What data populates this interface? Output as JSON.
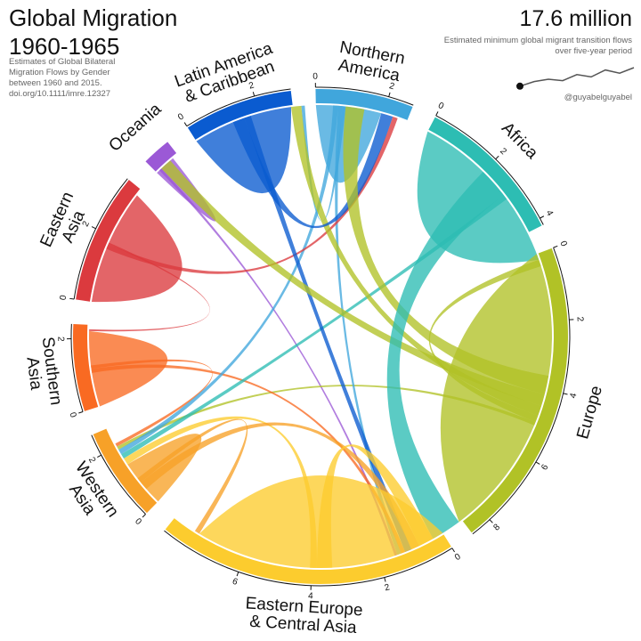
{
  "header": {
    "title_line1": "Global Migration",
    "title_line2": "1960-1965",
    "subtitle": "Estimates of Global Bilateral Migration Flows by Gender between 1960 and 2015. doi.org/10.1111/imre.12327",
    "total": "17.6 million",
    "total_note": "Estimated minimum global migrant transition flows over five-year period",
    "credit": "@guyabelguyabel"
  },
  "colors": {
    "Northern America": "#40a6dc",
    "Africa": "#2dbdb3",
    "Europe": "#b1c226",
    "Eastern Europe & Central Asia": "#fccc2e",
    "Western Asia": "#f7a128",
    "Southern Asia": "#f96a22",
    "Eastern Asia": "#db3a3e",
    "Oceania": "#9b59d6",
    "Latin America & Caribbean": "#0a5bd0"
  },
  "chart_data": {
    "type": "chord",
    "units": "millions of migrants",
    "sparkline": [
      0.6,
      0.7,
      0.75,
      0.72,
      0.85,
      0.8,
      0.95,
      0.88,
      1.0
    ],
    "regions": [
      {
        "name": "Northern America",
        "label_lines": [
          "Northern",
          "America"
        ],
        "total": 2.7,
        "ticks": [
          0,
          2
        ]
      },
      {
        "name": "Africa",
        "label_lines": [
          "Africa"
        ],
        "total": 4.2,
        "ticks": [
          0,
          2,
          4
        ]
      },
      {
        "name": "Europe",
        "label_lines": [
          "Europe"
        ],
        "total": 8.6,
        "ticks": [
          0,
          2,
          4,
          6,
          8
        ]
      },
      {
        "name": "Eastern Europe & Central Asia",
        "label_lines": [
          "Eastern Europe",
          "& Central Asia"
        ],
        "total": 8.3,
        "ticks": [
          0,
          2,
          4,
          6
        ]
      },
      {
        "name": "Western Asia",
        "label_lines": [
          "Western",
          "Asia"
        ],
        "total": 2.6,
        "ticks": [
          0,
          2
        ]
      },
      {
        "name": "Southern Asia",
        "label_lines": [
          "Southern",
          "Asia"
        ],
        "total": 2.4,
        "ticks": [
          0,
          2
        ]
      },
      {
        "name": "Eastern Asia",
        "label_lines": [
          "Eastern",
          "Asia"
        ],
        "total": 3.6,
        "ticks": [
          0,
          2
        ]
      },
      {
        "name": "Oceania",
        "label_lines": [
          "Oceania"
        ],
        "total": 0.8,
        "ticks": []
      },
      {
        "name": "Latin America & Caribbean",
        "label_lines": [
          "Latin America",
          "& Caribbean"
        ],
        "total": 3.0,
        "ticks": [
          0,
          2
        ]
      }
    ],
    "flows": [
      {
        "from": "Africa",
        "to": "Africa",
        "value": 2.0
      },
      {
        "from": "Africa",
        "to": "Europe",
        "value": 0.9
      },
      {
        "from": "Africa",
        "to": "Western Asia",
        "value": 0.15
      },
      {
        "from": "Europe",
        "to": "Europe",
        "value": 3.6
      },
      {
        "from": "Europe",
        "to": "Northern America",
        "value": 0.55
      },
      {
        "from": "Europe",
        "to": "Oceania",
        "value": 0.35
      },
      {
        "from": "Europe",
        "to": "Latin America & Caribbean",
        "value": 0.3
      },
      {
        "from": "Europe",
        "to": "Africa",
        "value": 0.2
      },
      {
        "from": "Europe",
        "to": "Western Asia",
        "value": 0.1
      },
      {
        "from": "Eastern Europe & Central Asia",
        "to": "Eastern Europe & Central Asia",
        "value": 3.4
      },
      {
        "from": "Eastern Europe & Central Asia",
        "to": "Europe",
        "value": 0.45
      },
      {
        "from": "Eastern Europe & Central Asia",
        "to": "Western Asia",
        "value": 0.2
      },
      {
        "from": "Western Asia",
        "to": "Western Asia",
        "value": 0.5
      },
      {
        "from": "Western Asia",
        "to": "Europe",
        "value": 0.25
      },
      {
        "from": "Western Asia",
        "to": "Eastern Europe & Central Asia",
        "value": 0.15
      },
      {
        "from": "Southern Asia",
        "to": "Southern Asia",
        "value": 1.0
      },
      {
        "from": "Southern Asia",
        "to": "Western Asia",
        "value": 0.1
      },
      {
        "from": "Southern Asia",
        "to": "Europe",
        "value": 0.12
      },
      {
        "from": "Eastern Asia",
        "to": "Eastern Asia",
        "value": 1.6
      },
      {
        "from": "Eastern Asia",
        "to": "Northern America",
        "value": 0.15
      },
      {
        "from": "Eastern Asia",
        "to": "Southern Asia",
        "value": 0.05
      },
      {
        "from": "Northern America",
        "to": "Northern America",
        "value": 0.5
      },
      {
        "from": "Northern America",
        "to": "Europe",
        "value": 0.12
      },
      {
        "from": "Northern America",
        "to": "Western Asia",
        "value": 0.15
      },
      {
        "from": "Northern America",
        "to": "Latin America & Caribbean",
        "value": 0.1
      },
      {
        "from": "Latin America & Caribbean",
        "to": "Latin America & Caribbean",
        "value": 1.2
      },
      {
        "from": "Latin America & Caribbean",
        "to": "Northern America",
        "value": 0.35
      },
      {
        "from": "Latin America & Caribbean",
        "to": "Europe",
        "value": 0.2
      },
      {
        "from": "Oceania",
        "to": "Europe",
        "value": 0.08
      },
      {
        "from": "Oceania",
        "to": "Oceania",
        "value": 0.1
      }
    ]
  }
}
